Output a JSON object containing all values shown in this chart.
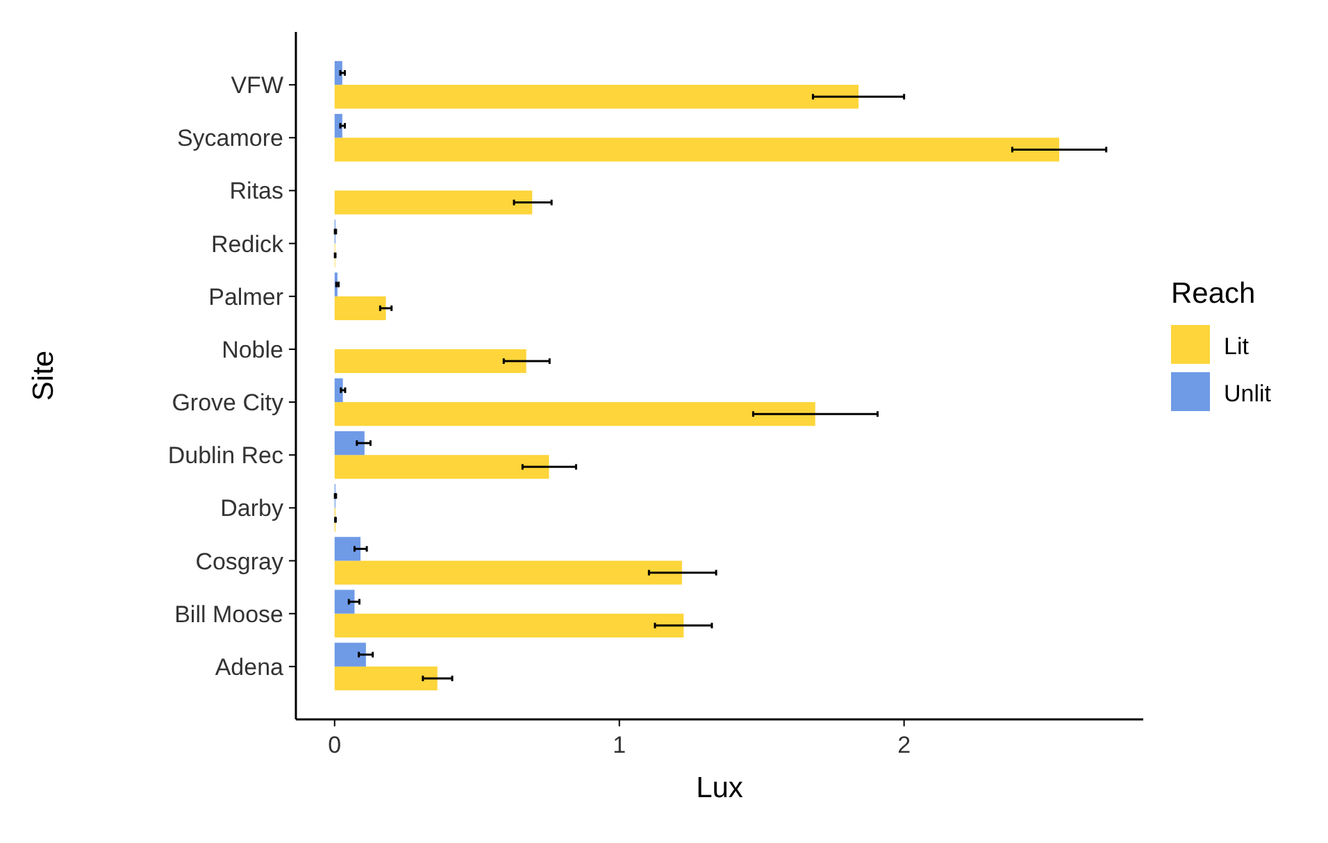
{
  "chart_data": {
    "type": "bar",
    "orientation": "horizontal",
    "xlabel": "Lux",
    "ylabel": "Site",
    "legend_title": "Reach",
    "legend": "right",
    "grid": false,
    "categories": [
      "VFW",
      "Sycamore",
      "Ritas",
      "Redick",
      "Palmer",
      "Noble",
      "Grove City",
      "Dublin Rec",
      "Darby",
      "Cosgray",
      "Bill Moose",
      "Adena"
    ],
    "xlim": [
      -0.136,
      2.84
    ],
    "xticks": [
      0,
      1,
      2
    ],
    "series": [
      {
        "name": "Lit",
        "color": "#fed53a",
        "values": [
          1.84,
          2.545,
          0.694,
          0.002,
          0.18,
          0.673,
          1.688,
          0.753,
          0.003,
          1.22,
          1.226,
          0.361
        ],
        "errors": [
          [
            1.68,
            2.0
          ],
          [
            2.38,
            2.71
          ],
          [
            0.63,
            0.762
          ],
          [
            0.001,
            0.003
          ],
          [
            0.16,
            0.2
          ],
          [
            0.594,
            0.755
          ],
          [
            1.47,
            1.907
          ],
          [
            0.66,
            0.848
          ],
          [
            0.002,
            0.004
          ],
          [
            1.104,
            1.34
          ],
          [
            1.125,
            1.325
          ],
          [
            0.31,
            0.413
          ]
        ]
      },
      {
        "name": "Unlit",
        "color": "#6f9ae6",
        "values": [
          0.027,
          0.027,
          null,
          0.003,
          0.01,
          null,
          0.029,
          0.105,
          0.003,
          0.091,
          0.07,
          0.11
        ],
        "errors": [
          [
            0.02,
            0.036
          ],
          [
            0.02,
            0.036
          ],
          null,
          [
            0.001,
            0.005
          ],
          [
            0.006,
            0.014
          ],
          null,
          [
            0.022,
            0.037
          ],
          [
            0.078,
            0.126
          ],
          [
            0.001,
            0.005
          ],
          [
            0.07,
            0.113
          ],
          [
            0.05,
            0.087
          ],
          [
            0.085,
            0.134
          ]
        ]
      }
    ]
  }
}
